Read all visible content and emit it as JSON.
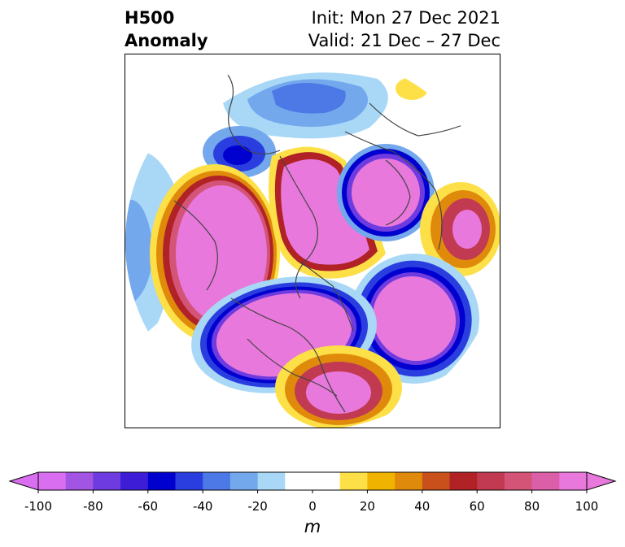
{
  "header": {
    "title_line1": "H500",
    "title_line2": "Anomaly",
    "init": "Init: Mon 27 Dec 2021",
    "valid": "Valid: 21 Dec – 27 Dec"
  },
  "colorbar": {
    "unit": "m",
    "ticks": [
      "-100",
      "-80",
      "-60",
      "-40",
      "-20",
      "0",
      "20",
      "40",
      "60",
      "80",
      "100"
    ],
    "colors": [
      "#d96ff0",
      "#a255e3",
      "#6d3bdf",
      "#3d1ed6",
      "#0000cf",
      "#2a3ee0",
      "#4d79e6",
      "#74a8ed",
      "#a8d8f6",
      "#ffffff",
      "#ffffff",
      "#fde047",
      "#f0b400",
      "#e08a0c",
      "#c9501a",
      "#b02225",
      "#c23a52",
      "#d45478",
      "#db5fa8",
      "#e878dc"
    ]
  }
}
